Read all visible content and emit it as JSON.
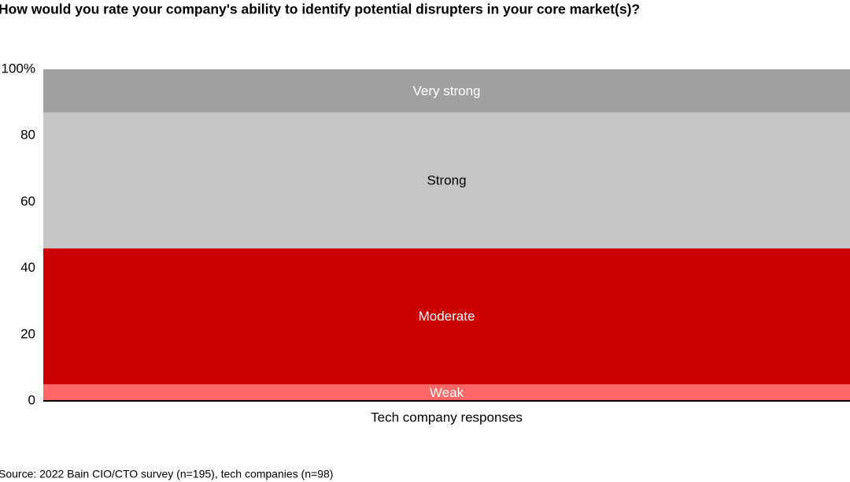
{
  "chart_data": {
    "type": "bar",
    "stacked": true,
    "title": "How would you rate your company's ability to identify potential disrupters in your core market(s)?",
    "categories": [
      "Tech company responses"
    ],
    "series": [
      {
        "name": "Weak",
        "color": "#ff6666",
        "values": [
          5
        ]
      },
      {
        "name": "Moderate",
        "color": "#cc0000",
        "values": [
          41
        ]
      },
      {
        "name": "Strong",
        "color": "#c6c6c6",
        "values": [
          41
        ]
      },
      {
        "name": "Very strong",
        "color": "#a0a0a0",
        "values": [
          13
        ]
      }
    ],
    "ylim": [
      0,
      100
    ],
    "yticks": [
      0,
      20,
      40,
      60,
      80,
      {
        "value": 100,
        "label": "100%"
      }
    ],
    "grid": false,
    "source": "Source: 2022 Bain CIO/CTO survey (n=195), tech companies (n=98)"
  }
}
